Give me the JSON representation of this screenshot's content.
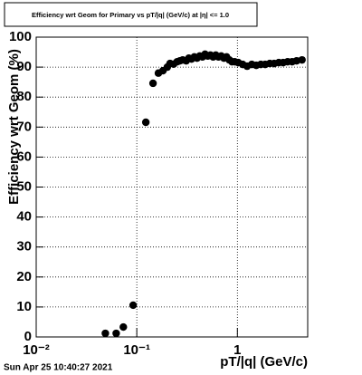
{
  "chart_data": {
    "type": "scatter",
    "title": "Efficiency wrt Geom for Primary vs pT/|q| (GeV/c) at |η| <= 1.0",
    "x_label": "pT/|q| (GeV/c)",
    "y_label": "Efficiency wrt Geom (%)",
    "footer": "Sun Apr 25 10:40:27 2021",
    "x_scale": "log",
    "grid": true,
    "color": "#000000",
    "xlim": [
      0.01,
      5
    ],
    "ylim": [
      0,
      100
    ],
    "xticks": [
      {
        "value": 0.01,
        "label": "10⁻²"
      },
      {
        "value": 0.1,
        "label": "10⁻¹"
      },
      1
    ],
    "yticks": [
      0,
      10,
      20,
      30,
      40,
      50,
      60,
      70,
      80,
      90,
      100
    ],
    "x": [
      0.0487,
      0.0624,
      0.0735,
      0.092,
      0.123,
      0.145,
      0.164,
      0.182,
      0.201,
      0.214,
      0.232,
      0.252,
      0.268,
      0.286,
      0.31,
      0.329,
      0.35,
      0.373,
      0.397,
      0.422,
      0.449,
      0.477,
      0.508,
      0.54,
      0.574,
      0.61,
      0.649,
      0.691,
      0.735,
      0.781,
      0.831,
      0.884,
      0.94,
      1.02,
      1.13,
      1.25,
      1.39,
      1.54,
      1.71,
      1.89,
      2.1,
      2.32,
      2.58,
      2.85,
      3.16,
      3.5,
      3.88,
      4.39
    ],
    "values": [
      1.2,
      1.2,
      3.3,
      10.6,
      71.6,
      84.6,
      88,
      88.8,
      90,
      91.2,
      91,
      91.8,
      92.1,
      92.4,
      92.1,
      93,
      92.7,
      93.4,
      93,
      93.7,
      93.4,
      94.3,
      93.7,
      94,
      93.4,
      94,
      93.4,
      93.7,
      93,
      93.4,
      92.4,
      91.8,
      91.8,
      91.5,
      90.9,
      90.3,
      90.9,
      90.6,
      90.9,
      90.9,
      91.2,
      91.2,
      91.5,
      91.5,
      91.8,
      91.8,
      92.1,
      92.4
    ]
  }
}
